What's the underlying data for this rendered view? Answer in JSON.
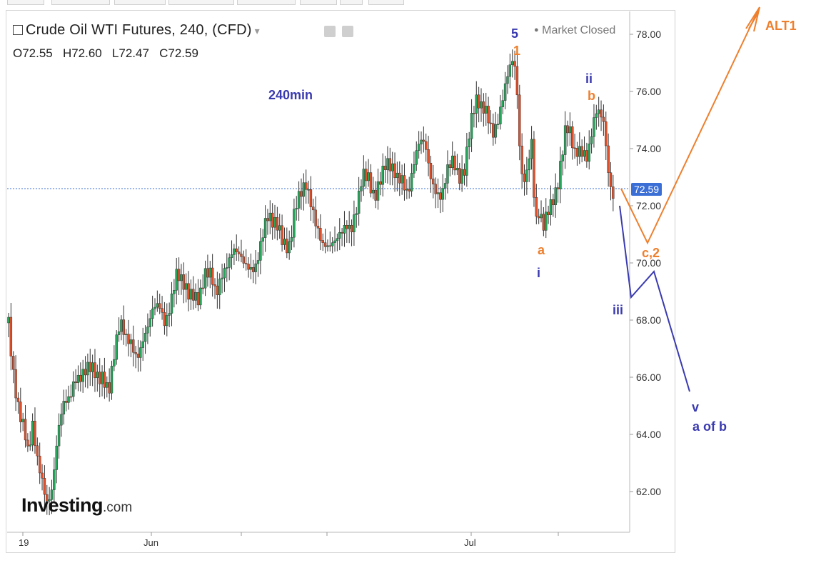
{
  "header": {
    "title": "Crude Oil WTI Futures, 240, (CFD)",
    "market_status": "Market Closed",
    "ohlc": {
      "open": "O72.55",
      "high": "H72.60",
      "low": "L72.47",
      "close": "C72.59"
    }
  },
  "timeframe_label": "240min",
  "logo": {
    "main": "Investing",
    "suffix": ".com"
  },
  "price_tag": "72.59",
  "wave_labels": {
    "w5": "5",
    "w1": "1",
    "wii": "ii",
    "wb": "b",
    "wa": "a",
    "wi": "i",
    "wc2": "c,2",
    "wiii": "iii",
    "wv": "v",
    "waofb": "a of b",
    "alt1": "ALT1"
  },
  "colors": {
    "bull": "#26a65b",
    "bear": "#e0502b",
    "wave_blue": "#3a3ab0",
    "wave_orange": "#ee7f2d",
    "price_line": "#3b6fd6"
  },
  "chart_data": {
    "type": "candlestick",
    "title": "Crude Oil WTI Futures, 240, (CFD)",
    "interval": "240min",
    "ylim": [
      60.5,
      79.0
    ],
    "y_ticks": [
      "78.00",
      "76.00",
      "74.00",
      "72.00",
      "70.00",
      "68.00",
      "66.00",
      "64.00",
      "62.00"
    ],
    "x_ticks": [
      "19",
      "Jun",
      "Jul"
    ],
    "last_close": 72.59,
    "ohlc_last": {
      "open": 72.55,
      "high": 72.6,
      "low": 72.47,
      "close": 72.59
    },
    "price_path": [
      [
        0,
        67.9
      ],
      [
        6,
        66.5
      ],
      [
        14,
        65.2
      ],
      [
        22,
        64.2
      ],
      [
        28,
        63.0
      ],
      [
        34,
        64.0
      ],
      [
        40,
        63.1
      ],
      [
        48,
        62.6
      ],
      [
        55,
        61.9
      ],
      [
        62,
        62.2
      ],
      [
        70,
        63.8
      ],
      [
        78,
        64.8
      ],
      [
        86,
        65.3
      ],
      [
        94,
        66.3
      ],
      [
        102,
        66.2
      ],
      [
        110,
        66.1
      ],
      [
        118,
        66.0
      ],
      [
        126,
        65.9
      ],
      [
        134,
        66.3
      ],
      [
        142,
        65.8
      ],
      [
        150,
        66.8
      ],
      [
        158,
        67.6
      ],
      [
        166,
        67.2
      ],
      [
        174,
        67.4
      ],
      [
        182,
        67.0
      ],
      [
        190,
        67.3
      ],
      [
        198,
        67.5
      ],
      [
        206,
        68.2
      ],
      [
        214,
        68.6
      ],
      [
        222,
        68.2
      ],
      [
        230,
        68.8
      ],
      [
        238,
        69.4
      ],
      [
        246,
        69.0
      ],
      [
        254,
        68.9
      ],
      [
        262,
        69.2
      ],
      [
        270,
        69.0
      ],
      [
        278,
        69.5
      ],
      [
        286,
        69.3
      ],
      [
        294,
        68.7
      ],
      [
        302,
        69.8
      ],
      [
        310,
        70.3
      ],
      [
        318,
        70.5
      ],
      [
        326,
        70.0
      ],
      [
        334,
        69.7
      ],
      [
        342,
        69.9
      ],
      [
        350,
        70.2
      ],
      [
        358,
        70.9
      ],
      [
        366,
        71.4
      ],
      [
        374,
        71.1
      ],
      [
        382,
        71.3
      ],
      [
        390,
        71.0
      ],
      [
        398,
        70.8
      ],
      [
        406,
        71.8
      ],
      [
        414,
        72.1
      ],
      [
        422,
        72.6
      ],
      [
        430,
        72.2
      ],
      [
        438,
        71.5
      ],
      [
        446,
        70.6
      ],
      [
        454,
        70.2
      ],
      [
        462,
        70.5
      ],
      [
        470,
        71.2
      ],
      [
        478,
        71.7
      ],
      [
        486,
        71.3
      ],
      [
        494,
        71.7
      ],
      [
        502,
        72.8
      ],
      [
        510,
        73.0
      ],
      [
        518,
        72.6
      ],
      [
        526,
        73.1
      ],
      [
        534,
        73.3
      ],
      [
        542,
        73.0
      ],
      [
        550,
        72.9
      ],
      [
        558,
        73.2
      ],
      [
        566,
        72.7
      ],
      [
        574,
        73.4
      ],
      [
        582,
        73.9
      ],
      [
        590,
        74.0
      ],
      [
        598,
        73.2
      ],
      [
        606,
        72.8
      ],
      [
        614,
        72.4
      ],
      [
        622,
        73.0
      ],
      [
        630,
        73.3
      ],
      [
        638,
        73.0
      ],
      [
        646,
        73.6
      ],
      [
        654,
        75.0
      ],
      [
        662,
        75.5
      ],
      [
        670,
        75.1
      ],
      [
        678,
        75.2
      ],
      [
        686,
        74.8
      ],
      [
        694,
        75.3
      ],
      [
        702,
        75.9
      ],
      [
        710,
        76.5
      ],
      [
        716,
        76.9
      ],
      [
        720,
        76.2
      ],
      [
        726,
        73.4
      ],
      [
        732,
        73.2
      ],
      [
        738,
        74.0
      ],
      [
        742,
        74.4
      ],
      [
        746,
        71.2
      ],
      [
        752,
        71.4
      ],
      [
        758,
        71.0
      ],
      [
        764,
        71.8
      ],
      [
        770,
        72.4
      ],
      [
        778,
        73.0
      ],
      [
        784,
        73.8
      ],
      [
        790,
        74.6
      ],
      [
        796,
        74.2
      ],
      [
        802,
        73.6
      ],
      [
        808,
        74.0
      ],
      [
        814,
        74.2
      ],
      [
        820,
        74.0
      ],
      [
        826,
        74.6
      ],
      [
        832,
        75.1
      ],
      [
        838,
        74.9
      ],
      [
        844,
        74.6
      ],
      [
        850,
        73.2
      ],
      [
        856,
        72.6
      ],
      [
        860,
        72.59
      ]
    ],
    "annotation_paths": {
      "blue_projection": [
        [
          72.0,
          0
        ],
        [
          68.8,
          1
        ],
        [
          69.7,
          2
        ],
        [
          65.5,
          3
        ]
      ],
      "orange_projection": [
        [
          72.6,
          0
        ],
        [
          70.7,
          1
        ],
        [
          78.9,
          2
        ]
      ]
    }
  }
}
